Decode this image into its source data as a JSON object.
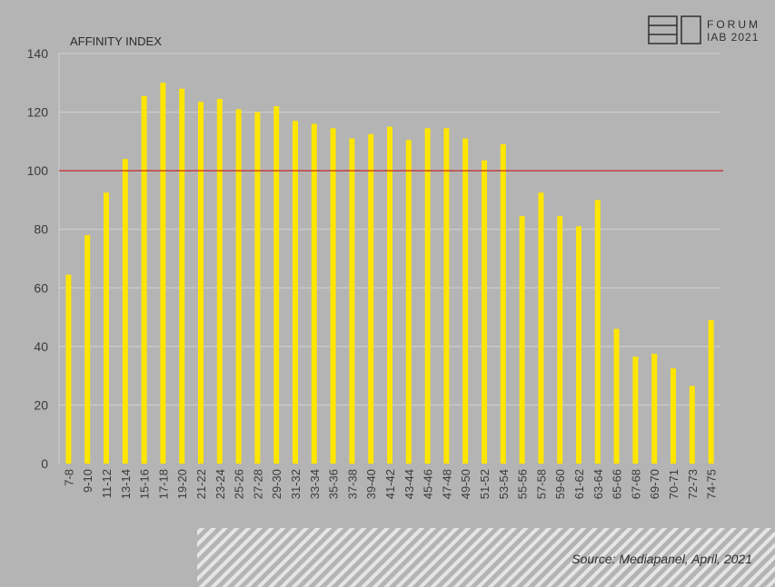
{
  "logo": {
    "line1": "FORUM",
    "line2": "IAB 2021"
  },
  "source": "Source: Mediapanel, April, 2021",
  "colors": {
    "background": "#b4b4b4",
    "bar": "#ffe600",
    "reference_line": "#c00000",
    "grid": "#d2d2d2"
  },
  "chart_data": {
    "type": "bar",
    "ylabel": "AFFINITY INDEX",
    "ylim": [
      0,
      140
    ],
    "yticks": [
      0,
      20,
      40,
      60,
      80,
      100,
      120,
      140
    ],
    "reference_line": 100,
    "grid": true,
    "categories": [
      "7-8",
      "9-10",
      "11-12",
      "13-14",
      "15-16",
      "17-18",
      "19-20",
      "21-22",
      "23-24",
      "25-26",
      "27-28",
      "29-30",
      "31-32",
      "33-34",
      "35-36",
      "37-38",
      "39-40",
      "41-42",
      "43-44",
      "45-46",
      "47-48",
      "49-50",
      "51-52",
      "53-54",
      "55-56",
      "57-58",
      "59-60",
      "61-62",
      "63-64",
      "65-66",
      "67-68",
      "69-70",
      "70-71",
      "72-73",
      "74-75"
    ],
    "values": [
      64.5,
      78,
      92.5,
      104,
      125.5,
      130,
      128,
      123.5,
      124.5,
      121,
      120,
      122,
      117,
      116,
      114.5,
      111,
      112.5,
      115,
      110.5,
      114.5,
      114.5,
      111,
      103.5,
      109,
      84.5,
      92.5,
      84.5,
      81,
      90,
      46,
      36.5,
      37.5,
      32.5,
      26.5,
      49
    ]
  }
}
